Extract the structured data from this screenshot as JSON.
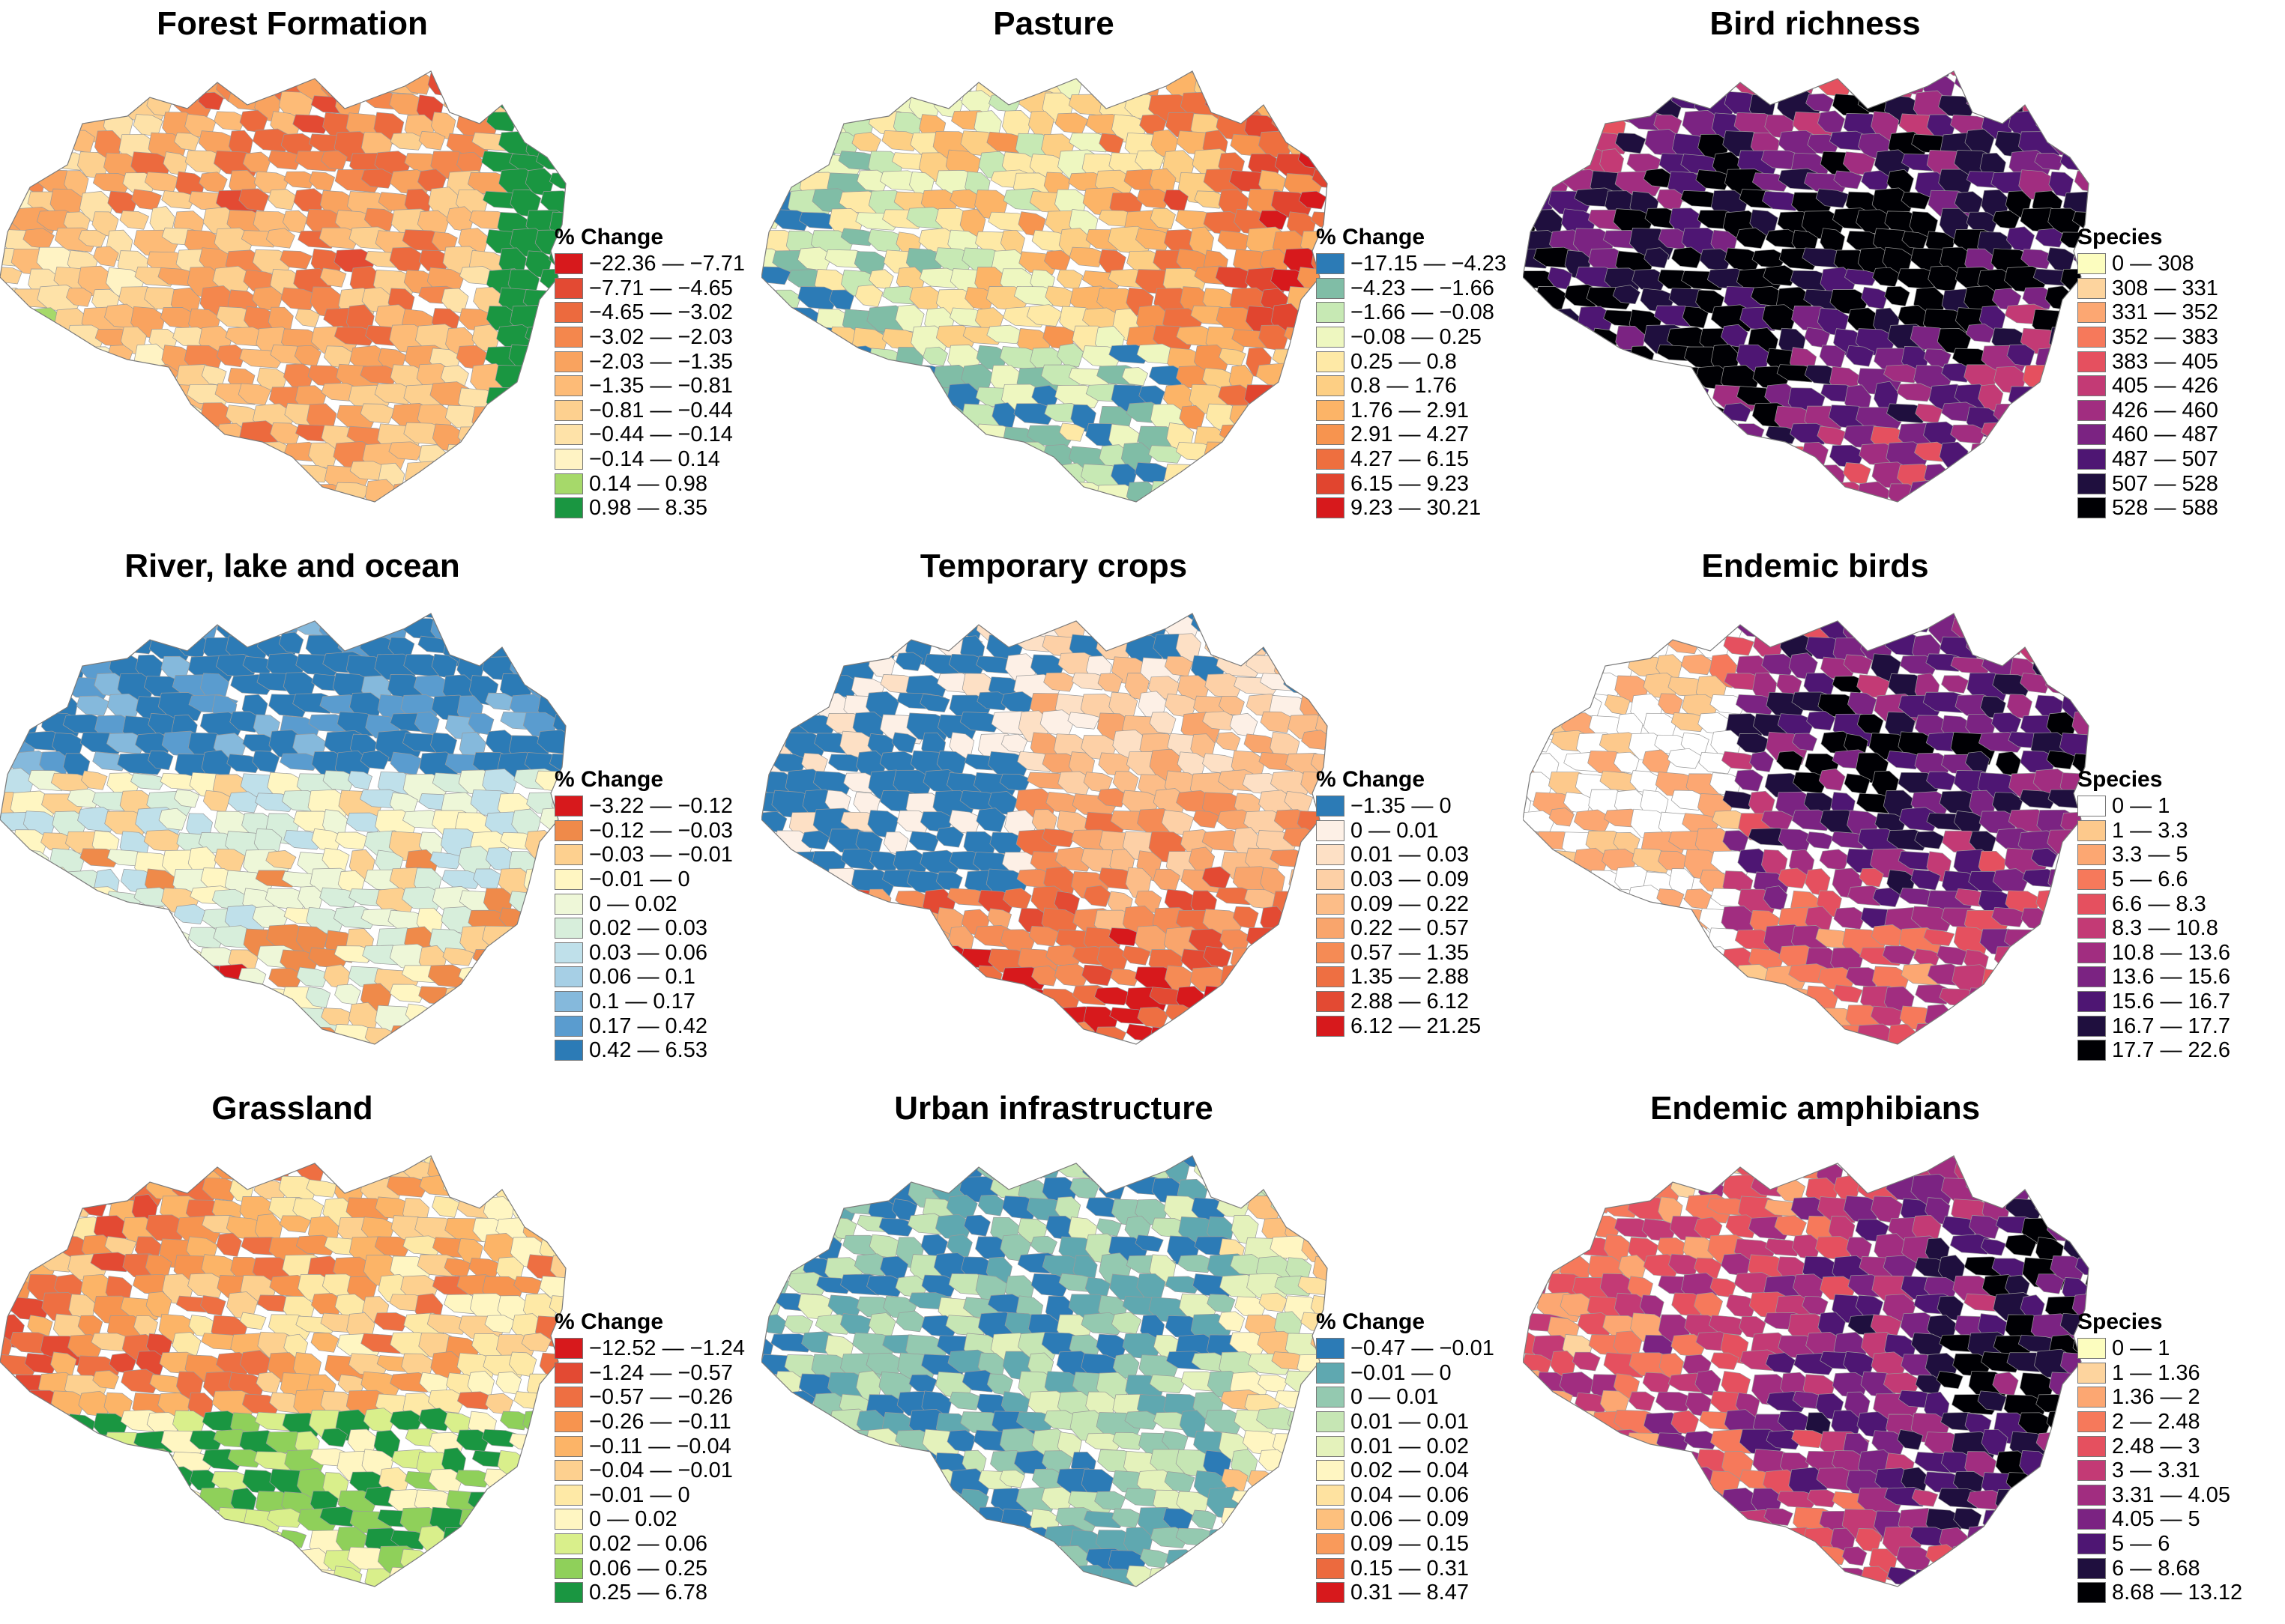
{
  "panels": [
    {
      "title": "Forest Formation",
      "legend_title": "% Change",
      "classes": [
        {
          "label": "−22.36 — −7.71",
          "color": "#d7191c"
        },
        {
          "label": "−7.71 — −4.65",
          "color": "#e34a33"
        },
        {
          "label": "−4.65 — −3.02",
          "color": "#ec6a3e"
        },
        {
          "label": "−3.02 — −2.03",
          "color": "#f4874d"
        },
        {
          "label": "−2.03 — −1.35",
          "color": "#f9a35f"
        },
        {
          "label": "−1.35 — −0.81",
          "color": "#fdbb77"
        },
        {
          "label": "−0.81 — −0.44",
          "color": "#fdd08f"
        },
        {
          "label": "−0.44 — −0.14",
          "color": "#fee2a8"
        },
        {
          "label": "−0.14 — 0.14",
          "color": "#fff3c4"
        },
        {
          "label": "0.14 — 0.98",
          "color": "#a6d96a"
        },
        {
          "label": "0.98 — 8.35",
          "color": "#1a9641"
        }
      ]
    },
    {
      "title": "Pasture",
      "legend_title": "% Change",
      "classes": [
        {
          "label": "−17.15 — −4.23",
          "color": "#2c7bb6"
        },
        {
          "label": "−4.23 — −1.66",
          "color": "#80bda6"
        },
        {
          "label": "−1.66 — −0.08",
          "color": "#c7e9b4"
        },
        {
          "label": "−0.08 — 0.25",
          "color": "#eef7c0"
        },
        {
          "label": "0.25 — 0.8",
          "color": "#fee9a6"
        },
        {
          "label": "0.8 — 1.76",
          "color": "#fdcf84"
        },
        {
          "label": "1.76 — 2.91",
          "color": "#fcb467"
        },
        {
          "label": "2.91 — 4.27",
          "color": "#f7944f"
        },
        {
          "label": "4.27 — 6.15",
          "color": "#ee6f3f"
        },
        {
          "label": "6.15 — 9.23",
          "color": "#e1452f"
        },
        {
          "label": "9.23 — 30.21",
          "color": "#d7191c"
        }
      ]
    },
    {
      "title": "Bird richness",
      "legend_title": "Species",
      "classes": [
        {
          "label": "0 — 308",
          "color": "#fcfdbf"
        },
        {
          "label": "308 — 331",
          "color": "#fdd49e"
        },
        {
          "label": "331 — 352",
          "color": "#fca772"
        },
        {
          "label": "352 — 383",
          "color": "#f6795b"
        },
        {
          "label": "383 — 405",
          "color": "#e5505f"
        },
        {
          "label": "405 — 426",
          "color": "#c33a75"
        },
        {
          "label": "426 — 460",
          "color": "#a12d80"
        },
        {
          "label": "460 — 487",
          "color": "#7b2382"
        },
        {
          "label": "487 — 507",
          "color": "#4e1673"
        },
        {
          "label": "507 — 528",
          "color": "#1f0f3e"
        },
        {
          "label": "528 — 588",
          "color": "#000004"
        }
      ]
    },
    {
      "title": "River, lake and ocean",
      "legend_title": "% Change",
      "classes": [
        {
          "label": "−3.22 — −0.12",
          "color": "#d7191c"
        },
        {
          "label": "−0.12 — −0.03",
          "color": "#ef8a4a"
        },
        {
          "label": "−0.03 — −0.01",
          "color": "#fdd08f"
        },
        {
          "label": "−0.01 — 0",
          "color": "#fff6c2"
        },
        {
          "label": "0 — 0.02",
          "color": "#eef7d8"
        },
        {
          "label": "0.02 — 0.03",
          "color": "#d7eedb"
        },
        {
          "label": "0.03 — 0.06",
          "color": "#bfe0ea"
        },
        {
          "label": "0.06 — 0.1",
          "color": "#a6cfe5"
        },
        {
          "label": "0.1 — 0.17",
          "color": "#85b9dc"
        },
        {
          "label": "0.17 — 0.42",
          "color": "#5a9ccf"
        },
        {
          "label": "0.42 — 6.53",
          "color": "#2c7bb6"
        }
      ]
    },
    {
      "title": "Temporary crops",
      "legend_title": "% Change",
      "classes": [
        {
          "label": "−1.35 — 0",
          "color": "#2c7bb6"
        },
        {
          "label": "0 — 0.01",
          "color": "#fdf0e6"
        },
        {
          "label": "0.01 — 0.03",
          "color": "#fde0c5"
        },
        {
          "label": "0.03 — 0.09",
          "color": "#fdd0a6"
        },
        {
          "label": "0.09 — 0.22",
          "color": "#fcbd88"
        },
        {
          "label": "0.22 — 0.57",
          "color": "#f9a56c"
        },
        {
          "label": "0.57 — 1.35",
          "color": "#f58b55"
        },
        {
          "label": "1.35 — 2.88",
          "color": "#ee6f42"
        },
        {
          "label": "2.88 — 6.12",
          "color": "#e34a33"
        },
        {
          "label": "6.12 — 21.25",
          "color": "#d7191c"
        }
      ]
    },
    {
      "title": "Endemic birds",
      "legend_title": "Species",
      "classes": [
        {
          "label": "0 — 1",
          "color": "#ffffff"
        },
        {
          "label": "1 — 3.3",
          "color": "#fdc98c"
        },
        {
          "label": "3.3 — 5",
          "color": "#fca772"
        },
        {
          "label": "5 — 6.6",
          "color": "#f6795b"
        },
        {
          "label": "6.6 — 8.3",
          "color": "#e5505f"
        },
        {
          "label": "8.3 — 10.8",
          "color": "#c33a75"
        },
        {
          "label": "10.8 — 13.6",
          "color": "#a12d80"
        },
        {
          "label": "13.6 — 15.6",
          "color": "#7b2382"
        },
        {
          "label": "15.6 — 16.7",
          "color": "#4e1673"
        },
        {
          "label": "16.7 — 17.7",
          "color": "#1f0f3e"
        },
        {
          "label": "17.7 — 22.6",
          "color": "#000004"
        }
      ]
    },
    {
      "title": "Grassland",
      "legend_title": "% Change",
      "classes": [
        {
          "label": "−12.52 — −1.24",
          "color": "#d7191c"
        },
        {
          "label": "−1.24 — −0.57",
          "color": "#e34a33"
        },
        {
          "label": "−0.57 — −0.26",
          "color": "#ee6f42"
        },
        {
          "label": "−0.26 — −0.11",
          "color": "#f7944f"
        },
        {
          "label": "−0.11 — −0.04",
          "color": "#fcb467"
        },
        {
          "label": "−0.04 — −0.01",
          "color": "#fdd08f"
        },
        {
          "label": "−0.01 — 0",
          "color": "#fee9a6"
        },
        {
          "label": "0 — 0.02",
          "color": "#fff6c2"
        },
        {
          "label": "0.02 — 0.06",
          "color": "#d9ef8b"
        },
        {
          "label": "0.06 — 0.25",
          "color": "#8fd05a"
        },
        {
          "label": "0.25 — 6.78",
          "color": "#1a9641"
        }
      ]
    },
    {
      "title": "Urban infrastructure",
      "legend_title": "% Change",
      "classes": [
        {
          "label": "−0.47 — −0.01",
          "color": "#2c7bb6"
        },
        {
          "label": "−0.01 — 0",
          "color": "#5fa8b0"
        },
        {
          "label": "0 — 0.01",
          "color": "#94c9b0"
        },
        {
          "label": "0.01 — 0.01",
          "color": "#c6e6b4"
        },
        {
          "label": "0.01 — 0.02",
          "color": "#e4f2bb"
        },
        {
          "label": "0.02 — 0.04",
          "color": "#fff6c2"
        },
        {
          "label": "0.04 — 0.06",
          "color": "#fee2a0"
        },
        {
          "label": "0.06 — 0.09",
          "color": "#fdc07d"
        },
        {
          "label": "0.09 — 0.15",
          "color": "#f99a5b"
        },
        {
          "label": "0.15 — 0.31",
          "color": "#ec6a3e"
        },
        {
          "label": "0.31 — 8.47",
          "color": "#d7191c"
        }
      ]
    },
    {
      "title": "Endemic amphibians",
      "legend_title": "Species",
      "classes": [
        {
          "label": "0 — 1",
          "color": "#fcfdbf"
        },
        {
          "label": "1 — 1.36",
          "color": "#fdd49e"
        },
        {
          "label": "1.36 — 2",
          "color": "#fca772"
        },
        {
          "label": "2 — 2.48",
          "color": "#f6795b"
        },
        {
          "label": "2.48 — 3",
          "color": "#e5505f"
        },
        {
          "label": "3 — 3.31",
          "color": "#c33a75"
        },
        {
          "label": "3.31 — 4.05",
          "color": "#a12d80"
        },
        {
          "label": "4.05 — 5",
          "color": "#7b2382"
        },
        {
          "label": "5 — 6",
          "color": "#4e1673"
        },
        {
          "label": "6 — 8.68",
          "color": "#1f0f3e"
        },
        {
          "label": "8.68 — 13.12",
          "color": "#000004"
        }
      ]
    }
  ]
}
